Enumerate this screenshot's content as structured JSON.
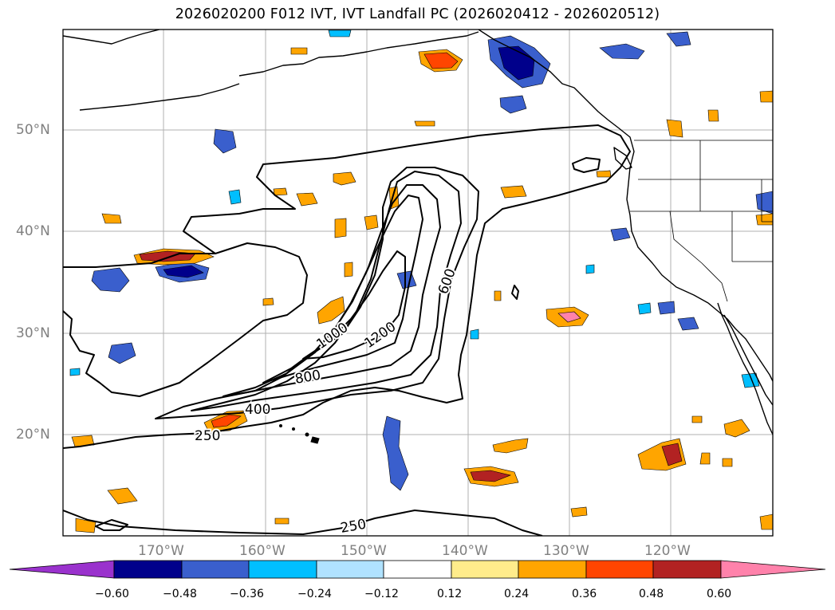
{
  "title": "2026020200 F012 IVT, IVT Landfall PC (2026020412 - 2026020512)",
  "map": {
    "projection": "Plate Carree",
    "lon_range": [
      -180,
      -110
    ],
    "lat_range": [
      10,
      60
    ],
    "lat_ticks": [
      "50°N",
      "40°N",
      "30°N",
      "20°N"
    ],
    "lon_ticks": [
      "170°W",
      "160°W",
      "150°W",
      "140°W",
      "130°W",
      "120°W"
    ],
    "gridlines": true,
    "coastlines": true,
    "state_borders": true
  },
  "ivt_contours": {
    "variable": "IVT",
    "levels": [
      "250",
      "400",
      "600",
      "800",
      "1000",
      "1200"
    ],
    "labels_shown": [
      "250",
      "250",
      "400",
      "600",
      "800",
      "1000",
      "1200"
    ],
    "line_color": "#000000"
  },
  "colorbar": {
    "variable": "IVT Landfall PC",
    "extend": "both",
    "bounds": [
      -0.6,
      -0.48,
      -0.36,
      -0.24,
      -0.12,
      0.12,
      0.24,
      0.36,
      0.48,
      0.6
    ],
    "tick_labels": [
      "−0.60",
      "−0.48",
      "−0.36",
      "−0.24",
      "−0.12",
      "0.12",
      "0.24",
      "0.36",
      "0.48",
      "0.60"
    ],
    "colors": [
      "#9a32cd",
      "#00008b",
      "#3a5fcd",
      "#00bfff",
      "#b0e2ff",
      "#ffffff",
      "#ffec8b",
      "#ffa500",
      "#ff4500",
      "#b22222",
      "#ff82ab"
    ]
  }
}
